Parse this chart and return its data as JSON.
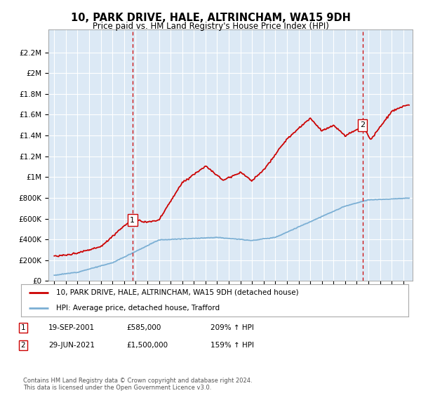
{
  "title": "10, PARK DRIVE, HALE, ALTRINCHAM, WA15 9DH",
  "subtitle": "Price paid vs. HM Land Registry's House Price Index (HPI)",
  "background_color": "#dce9f5",
  "plot_bg_color": "#dce9f5",
  "yticks": [
    0,
    200000,
    400000,
    600000,
    800000,
    1000000,
    1200000,
    1400000,
    1600000,
    1800000,
    2000000,
    2200000
  ],
  "ytick_labels": [
    "£0",
    "£200K",
    "£400K",
    "£600K",
    "£800K",
    "£1M",
    "£1.2M",
    "£1.4M",
    "£1.6M",
    "£1.8M",
    "£2M",
    "£2.2M"
  ],
  "ylim": [
    0,
    2420000
  ],
  "xlim_start": 1994.5,
  "xlim_end": 2025.8,
  "red_line_color": "#cc0000",
  "blue_line_color": "#7bafd4",
  "marker1_x": 2001.72,
  "marker1_y": 585000,
  "marker2_x": 2021.49,
  "marker2_y": 1500000,
  "legend_label_red": "10, PARK DRIVE, HALE, ALTRINCHAM, WA15 9DH (detached house)",
  "legend_label_blue": "HPI: Average price, detached house, Trafford",
  "note1_label": "1",
  "note1_date": "19-SEP-2001",
  "note1_price": "£585,000",
  "note1_hpi": "209% ↑ HPI",
  "note2_label": "2",
  "note2_date": "29-JUN-2021",
  "note2_price": "£1,500,000",
  "note2_hpi": "159% ↑ HPI",
  "footer": "Contains HM Land Registry data © Crown copyright and database right 2024.\nThis data is licensed under the Open Government Licence v3.0.",
  "grid_color": "#ffffff",
  "dashed_line_color": "#cc0000"
}
